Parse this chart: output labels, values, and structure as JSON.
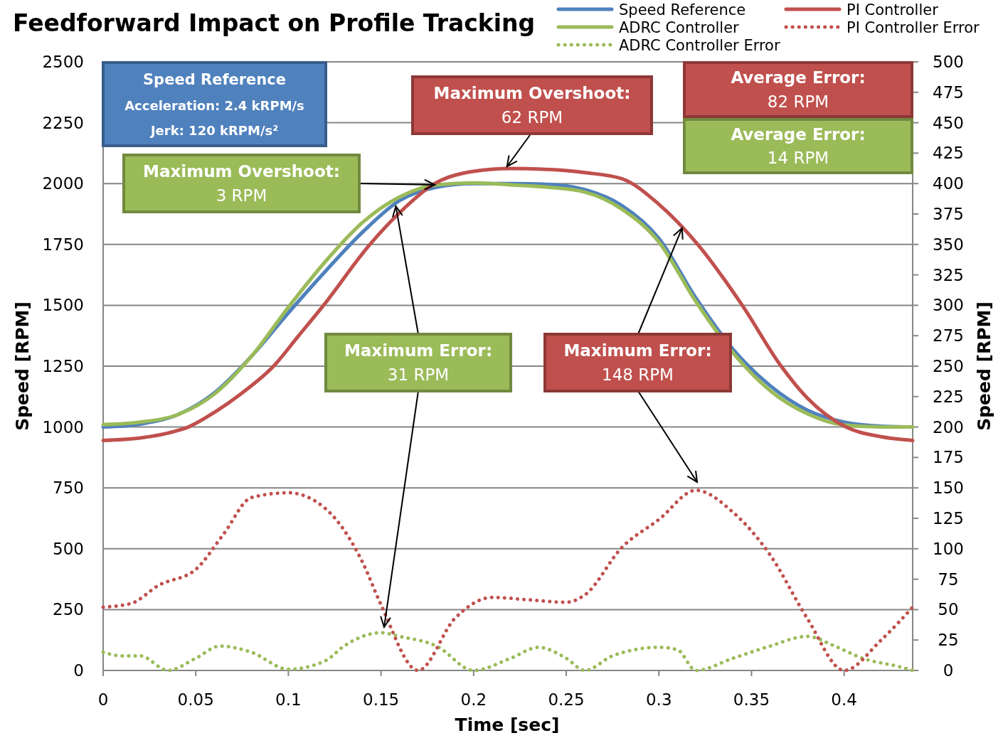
{
  "chart_data": {
    "type": "line",
    "title": "Feedforward Impact on Profile Tracking",
    "xlabel": "Time [sec]",
    "ylabel": "Speed [RPM]",
    "y2label": "Speed [RPM]",
    "xlim": [
      0,
      0.437
    ],
    "xticks": [
      0,
      0.05,
      0.1,
      0.15,
      0.2,
      0.25,
      0.3,
      0.35,
      0.4
    ],
    "ylim": [
      0,
      2500
    ],
    "yticks": [
      0,
      250,
      500,
      750,
      1000,
      1250,
      1500,
      1750,
      2000,
      2250,
      2500
    ],
    "y2lim": [
      0,
      500
    ],
    "y2ticks": [
      0,
      25,
      50,
      75,
      100,
      125,
      150,
      175,
      200,
      225,
      250,
      275,
      300,
      325,
      350,
      375,
      400,
      425,
      450,
      475,
      500
    ],
    "grid": "y",
    "legend": "top right",
    "marker": "none",
    "series": [
      {
        "name": "Speed Reference",
        "color": "#4f81bd",
        "x": [
          0,
          0.02,
          0.04,
          0.06,
          0.08,
          0.1,
          0.12,
          0.14,
          0.16,
          0.18,
          0.2,
          0.22,
          0.24,
          0.26,
          0.28,
          0.3,
          0.32,
          0.34,
          0.36,
          0.38,
          0.4,
          0.42,
          0.437
        ],
        "values": [
          1000,
          1012,
          1050,
          1140,
          1290,
          1469,
          1640,
          1800,
          1930,
          1985,
          2000,
          2000,
          1997,
          1975,
          1910,
          1775,
          1530,
          1320,
          1170,
          1070,
          1020,
          1003,
          1000
        ]
      },
      {
        "name": "ADRC Controller",
        "color": "#9bbb59",
        "x": [
          0,
          0.02,
          0.04,
          0.06,
          0.08,
          0.1,
          0.12,
          0.14,
          0.16,
          0.18,
          0.2,
          0.22,
          0.24,
          0.26,
          0.28,
          0.3,
          0.32,
          0.34,
          0.36,
          0.38,
          0.4,
          0.42,
          0.437
        ],
        "values": [
          1010,
          1020,
          1050,
          1135,
          1290,
          1492,
          1680,
          1840,
          1945,
          1995,
          2003,
          1995,
          1985,
          1965,
          1895,
          1760,
          1515,
          1305,
          1150,
          1055,
          1008,
          1000,
          1000
        ]
      },
      {
        "name": "ADRC Controller Error",
        "color": "#9bbb59",
        "axis": "y2",
        "line_style": "dotted",
        "x": [
          0,
          0.01,
          0.02,
          0.035,
          0.05,
          0.063,
          0.08,
          0.1,
          0.12,
          0.13,
          0.15,
          0.16,
          0.18,
          0.2,
          0.22,
          0.235,
          0.25,
          0.26,
          0.275,
          0.3,
          0.31,
          0.32,
          0.34,
          0.36,
          0.38,
          0.395,
          0.41,
          0.43,
          0.437
        ],
        "values": [
          15,
          12,
          12,
          0,
          10,
          20,
          15,
          1,
          8,
          20,
          31,
          28,
          20,
          0,
          10,
          19,
          10,
          0,
          12,
          19,
          17,
          0,
          10,
          20,
          28,
          20,
          10,
          3,
          0
        ]
      },
      {
        "name": "PI Controller",
        "color": "#c0504d",
        "x": [
          0,
          0.02,
          0.035,
          0.046,
          0.06,
          0.075,
          0.092,
          0.105,
          0.119,
          0.144,
          0.16,
          0.179,
          0.2,
          0.22,
          0.24,
          0.26,
          0.28,
          0.3,
          0.321,
          0.345,
          0.366,
          0.38,
          0.401,
          0.42,
          0.437
        ],
        "values": [
          945,
          955,
          975,
          1000,
          1060,
          1140,
          1250,
          1370,
          1500,
          1750,
          1880,
          2000,
          2050,
          2062,
          2058,
          2045,
          2020,
          1915,
          1750,
          1500,
          1250,
          1120,
          1000,
          960,
          945
        ]
      },
      {
        "name": "PI Controller Error",
        "color": "#c0504d",
        "axis": "y2",
        "line_style": "dotted",
        "x": [
          0,
          0.015,
          0.03,
          0.05,
          0.065,
          0.08,
          0.1,
          0.12,
          0.14,
          0.15,
          0.17,
          0.19,
          0.21,
          0.23,
          0.25,
          0.26,
          0.28,
          0.3,
          0.32,
          0.34,
          0.36,
          0.38,
          0.4,
          0.42,
          0.437
        ],
        "values": [
          52,
          55,
          70,
          83,
          112,
          142,
          146,
          133,
          89,
          54,
          0,
          43,
          60,
          58,
          56,
          62,
          101,
          124,
          148,
          130,
          95,
          43,
          0,
          25,
          52
        ]
      }
    ],
    "annotations": [
      "Speed Reference\nAcceleration: 2.4 kRPM/s\nJerk: 120 kRPM/s²",
      {
        "text": "Maximum Overshoot:\n62 RPM",
        "x": 0.218,
        "y": 2070
      },
      "Average Error:\n82 RPM",
      "Average Error:\n14 RPM",
      {
        "text": "Maximum Overshoot:\n3 RPM",
        "x": 0.179,
        "y": 1995
      },
      {
        "text": "Maximum Error:\n31 RPM",
        "x": 0.158,
        "y": 1907
      },
      {
        "text": "Maximum Error:\n148 RPM",
        "x": 0.3125,
        "y": 1817
      }
    ]
  }
}
